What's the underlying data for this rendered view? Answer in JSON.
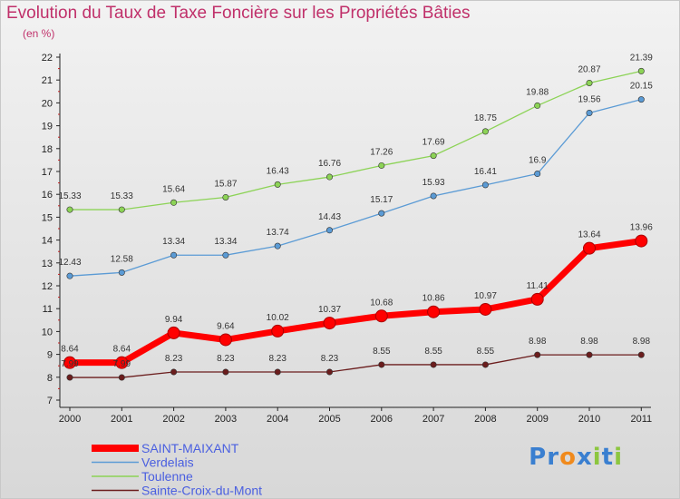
{
  "title": "Evolution du Taux de Taxe Foncière sur les Propriétés Bâties",
  "unit": "(en %)",
  "brand": {
    "letters": [
      {
        "ch": "P",
        "color": "#3a7fd0"
      },
      {
        "ch": "r",
        "color": "#3a7fd0"
      },
      {
        "ch": "o",
        "color": "#f08a1d"
      },
      {
        "ch": "x",
        "color": "#3a7fd0"
      },
      {
        "ch": "i",
        "color": "#8cc63f"
      },
      {
        "ch": "t",
        "color": "#3a7fd0"
      },
      {
        "ch": "i",
        "color": "#8cc63f"
      }
    ]
  },
  "chart_data": {
    "type": "line",
    "x": [
      "2000",
      "2001",
      "2002",
      "2003",
      "2004",
      "2005",
      "2006",
      "2007",
      "2008",
      "2009",
      "2010",
      "2011"
    ],
    "ylim": [
      7,
      22
    ],
    "yticks": [
      7,
      8,
      9,
      10,
      11,
      12,
      13,
      14,
      15,
      16,
      17,
      18,
      19,
      20,
      21,
      22
    ],
    "grid": false,
    "legend_position": "bottom-left",
    "series": [
      {
        "name": "Toulenne",
        "color": "#8cd356",
        "values": [
          15.33,
          15.33,
          15.64,
          15.87,
          16.43,
          16.76,
          17.26,
          17.69,
          18.75,
          19.88,
          20.87,
          21.39
        ],
        "labels": [
          "15.33",
          "15.33",
          "15.64",
          "15.87",
          "16.43",
          "16.76",
          "17.26",
          "17.69",
          "18.75",
          "19.88",
          "20.87",
          "21.39"
        ]
      },
      {
        "name": "Verdelais",
        "color": "#5b9bd5",
        "values": [
          12.43,
          12.58,
          13.34,
          13.34,
          13.74,
          14.43,
          15.17,
          15.93,
          16.41,
          16.9,
          19.56,
          20.15
        ],
        "labels": [
          "12.43",
          "12.58",
          "13.34",
          "13.34",
          "13.74",
          "14.43",
          "15.17",
          "15.93",
          "16.41",
          "16.9",
          "19.56",
          "20.15"
        ]
      },
      {
        "name": "SAINT-MAIXANT",
        "color": "#ff0000",
        "values": [
          8.64,
          8.64,
          9.94,
          9.64,
          10.02,
          10.37,
          10.68,
          10.86,
          10.97,
          11.41,
          13.64,
          13.96
        ],
        "labels": [
          "8.64",
          "8.64",
          "9.94",
          "9.64",
          "10.02",
          "10.37",
          "10.68",
          "10.86",
          "10.97",
          "11.41",
          "13.64",
          "13.96"
        ]
      },
      {
        "name": "Sainte-Croix-du-Mont",
        "color": "#6b1d1d",
        "values": [
          7.99,
          7.99,
          8.23,
          8.23,
          8.23,
          8.23,
          8.55,
          8.55,
          8.55,
          8.98,
          8.98,
          8.98
        ],
        "labels": [
          "7.99",
          "7.99",
          "8.23",
          "8.23",
          "8.23",
          "8.23",
          "8.55",
          "8.55",
          "8.55",
          "8.98",
          "8.98",
          "8.98"
        ]
      }
    ],
    "legend_order": [
      "SAINT-MAIXANT",
      "Verdelais",
      "Toulenne",
      "Sainte-Croix-du-Mont"
    ]
  }
}
